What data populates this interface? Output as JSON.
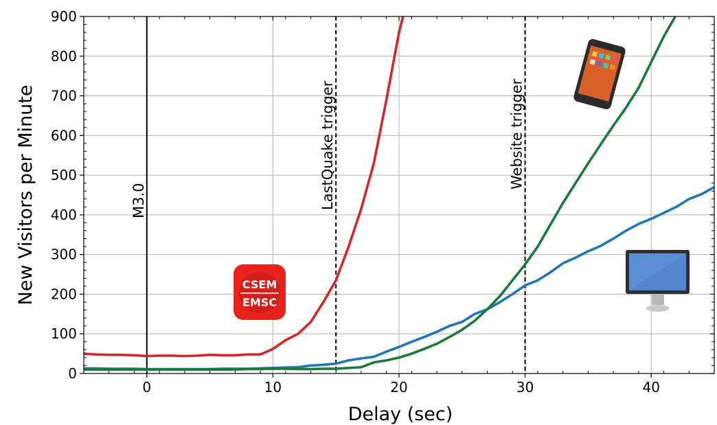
{
  "chart_data": {
    "type": "line",
    "xlabel": "Delay (sec)",
    "ylabel": "New Visitors per Minute",
    "xlim": [
      -5,
      45
    ],
    "ylim": [
      0,
      900
    ],
    "xticks": [
      0,
      10,
      20,
      30,
      40
    ],
    "yticks": [
      0,
      100,
      200,
      300,
      400,
      500,
      600,
      700,
      800,
      900
    ],
    "grid": true,
    "vlines": [
      {
        "x": 0,
        "label": "M3.0",
        "style": "solid"
      },
      {
        "x": 15,
        "label": "LastQuake trigger",
        "style": "dashed"
      },
      {
        "x": 30,
        "label": "Website trigger",
        "style": "dashed"
      }
    ],
    "series": [
      {
        "color": "#d62728",
        "points": [
          [
            -5,
            50
          ],
          [
            -4,
            48
          ],
          [
            -3,
            47
          ],
          [
            -2,
            47
          ],
          [
            -1,
            46
          ],
          [
            0,
            44
          ],
          [
            1,
            45
          ],
          [
            2,
            45
          ],
          [
            3,
            44
          ],
          [
            4,
            45
          ],
          [
            5,
            47
          ],
          [
            6,
            46
          ],
          [
            7,
            46
          ],
          [
            8,
            48
          ],
          [
            9,
            48
          ],
          [
            10,
            62
          ],
          [
            11,
            84
          ],
          [
            12,
            100
          ],
          [
            13,
            130
          ],
          [
            14,
            180
          ],
          [
            15,
            235
          ],
          [
            16,
            320
          ],
          [
            17,
            415
          ],
          [
            18,
            530
          ],
          [
            19,
            690
          ],
          [
            20,
            860
          ],
          [
            20.4,
            910
          ]
        ]
      },
      {
        "color": "#1f77b4",
        "points": [
          [
            -5,
            13
          ],
          [
            -4,
            13
          ],
          [
            -3,
            12
          ],
          [
            -2,
            12
          ],
          [
            -1,
            12
          ],
          [
            0,
            11
          ],
          [
            1,
            11
          ],
          [
            2,
            11
          ],
          [
            3,
            11
          ],
          [
            4,
            11
          ],
          [
            5,
            11
          ],
          [
            6,
            12
          ],
          [
            7,
            12
          ],
          [
            8,
            12
          ],
          [
            9,
            13
          ],
          [
            10,
            14
          ],
          [
            11,
            15
          ],
          [
            12,
            16
          ],
          [
            13,
            20
          ],
          [
            14,
            22
          ],
          [
            15,
            25
          ],
          [
            16,
            33
          ],
          [
            17,
            38
          ],
          [
            18,
            42
          ],
          [
            19,
            55
          ],
          [
            20,
            67
          ],
          [
            21,
            80
          ],
          [
            22,
            92
          ],
          [
            23,
            105
          ],
          [
            24,
            120
          ],
          [
            25,
            130
          ],
          [
            26,
            150
          ],
          [
            27,
            162
          ],
          [
            28,
            180
          ],
          [
            29,
            200
          ],
          [
            30,
            222
          ],
          [
            31,
            235
          ],
          [
            32,
            255
          ],
          [
            33,
            278
          ],
          [
            34,
            292
          ],
          [
            35,
            308
          ],
          [
            36,
            322
          ],
          [
            37,
            340
          ],
          [
            38,
            360
          ],
          [
            39,
            377
          ],
          [
            40,
            390
          ],
          [
            41,
            405
          ],
          [
            42,
            420
          ],
          [
            43,
            440
          ],
          [
            44,
            452
          ],
          [
            45,
            470
          ]
        ]
      },
      {
        "color": "#1a7a3a",
        "points": [
          [
            -5,
            10
          ],
          [
            -4,
            10
          ],
          [
            -3,
            10
          ],
          [
            -2,
            10
          ],
          [
            -1,
            10
          ],
          [
            0,
            10
          ],
          [
            1,
            10
          ],
          [
            2,
            10
          ],
          [
            3,
            10
          ],
          [
            4,
            10
          ],
          [
            5,
            10
          ],
          [
            6,
            10
          ],
          [
            7,
            10
          ],
          [
            8,
            11
          ],
          [
            9,
            11
          ],
          [
            10,
            12
          ],
          [
            11,
            12
          ],
          [
            12,
            11
          ],
          [
            13,
            11
          ],
          [
            14,
            12
          ],
          [
            15,
            12
          ],
          [
            16,
            14
          ],
          [
            17,
            16
          ],
          [
            18,
            28
          ],
          [
            19,
            33
          ],
          [
            20,
            40
          ],
          [
            21,
            50
          ],
          [
            22,
            62
          ],
          [
            23,
            75
          ],
          [
            24,
            92
          ],
          [
            25,
            110
          ],
          [
            26,
            133
          ],
          [
            27,
            162
          ],
          [
            28,
            195
          ],
          [
            29,
            235
          ],
          [
            30,
            275
          ],
          [
            31,
            320
          ],
          [
            32,
            375
          ],
          [
            33,
            430
          ],
          [
            34,
            480
          ],
          [
            35,
            530
          ],
          [
            36,
            578
          ],
          [
            37,
            625
          ],
          [
            38,
            670
          ],
          [
            39,
            720
          ],
          [
            40,
            785
          ],
          [
            41,
            850
          ],
          [
            42,
            905
          ]
        ]
      }
    ]
  },
  "logo": {
    "line1": "CSEM",
    "line2": "EMSC",
    "color": "#e8221c"
  },
  "icons": {
    "phone": "smartphone-icon",
    "monitor": "desktop-monitor-icon",
    "logo": "csem-emsc-logo-icon"
  }
}
